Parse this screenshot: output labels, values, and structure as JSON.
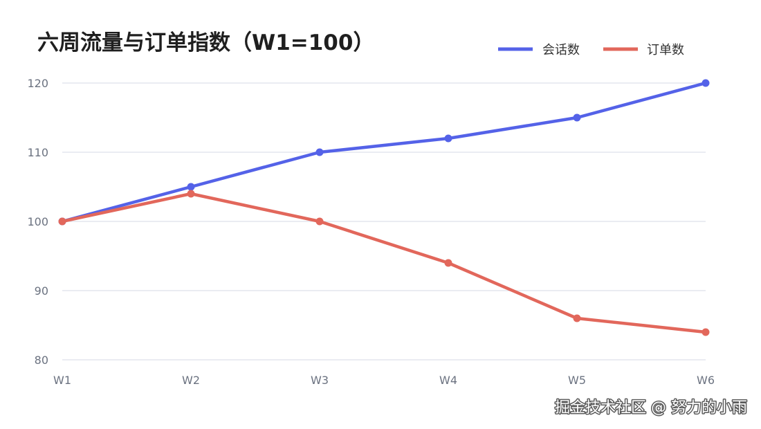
{
  "chart_data": {
    "type": "line",
    "title": "六周流量与订单指数（W1=100）",
    "categories": [
      "W1",
      "W2",
      "W3",
      "W4",
      "W5",
      "W6"
    ],
    "series": [
      {
        "name": "会话数",
        "values": [
          100,
          105,
          110,
          112,
          115,
          120
        ],
        "color": "#5462e8"
      },
      {
        "name": "订单数",
        "values": [
          100,
          104,
          100,
          94,
          86,
          84
        ],
        "color": "#e2675b"
      }
    ],
    "ylim": [
      80,
      120
    ],
    "yticks": [
      80,
      90,
      100,
      110,
      120
    ],
    "xlabel": "",
    "ylabel": "",
    "grid": "horizontal",
    "legend": "top-right",
    "markers": true
  },
  "watermark": "掘金技术社区 @ 努力的小雨"
}
